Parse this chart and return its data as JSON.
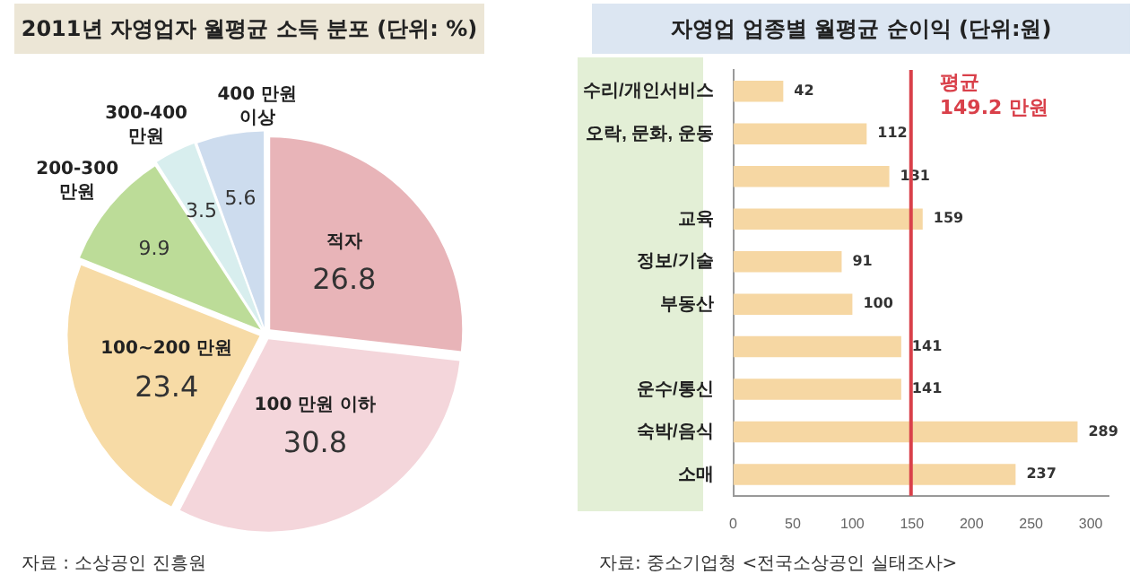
{
  "chart_data": [
    {
      "type": "pie",
      "title": "2011년 자영업자 월평균 소득 분포 (단위: %)",
      "categories": [
        "적자",
        "100 만원 이하",
        "100~200 만원",
        "200-300 만원",
        "300-400 만원",
        "400 만원 이상"
      ],
      "values": [
        26.8,
        30.8,
        23.4,
        9.9,
        3.5,
        5.6
      ],
      "colors": [
        "#e8b4b8",
        "#f4d6db",
        "#f7dba6",
        "#bcdc98",
        "#d8eeee",
        "#cddcee"
      ],
      "data_labels": true,
      "legend": false,
      "annotations": [
        "자료 : 소상공인 진흥원"
      ]
    },
    {
      "type": "bar",
      "orientation": "horizontal",
      "title": "자영업 업종별 월평균 순이익 (단위:원)",
      "categories": [
        "수리/개인서비스",
        "오락, 문화, 운동",
        null,
        "교육",
        "정보/기술",
        "부동산",
        null,
        "운수/통신",
        "숙박/음식",
        "소매"
      ],
      "values": [
        42,
        112,
        131,
        159,
        91,
        100,
        141,
        141,
        289,
        237
      ],
      "color": "#f6d7a3",
      "xlim": [
        0,
        315
      ],
      "xticks": [
        0,
        50,
        100,
        150,
        200,
        250,
        300
      ],
      "grid": false,
      "legend": false,
      "data_labels": true,
      "ref_lines": [
        {
          "axis": "x",
          "value": 149.2,
          "label": "평균 149.2 만원",
          "color": "#d9404a"
        }
      ],
      "annotations": [
        "자료: 중소기업청 <전국소상공인 실태조사>"
      ]
    }
  ]
}
